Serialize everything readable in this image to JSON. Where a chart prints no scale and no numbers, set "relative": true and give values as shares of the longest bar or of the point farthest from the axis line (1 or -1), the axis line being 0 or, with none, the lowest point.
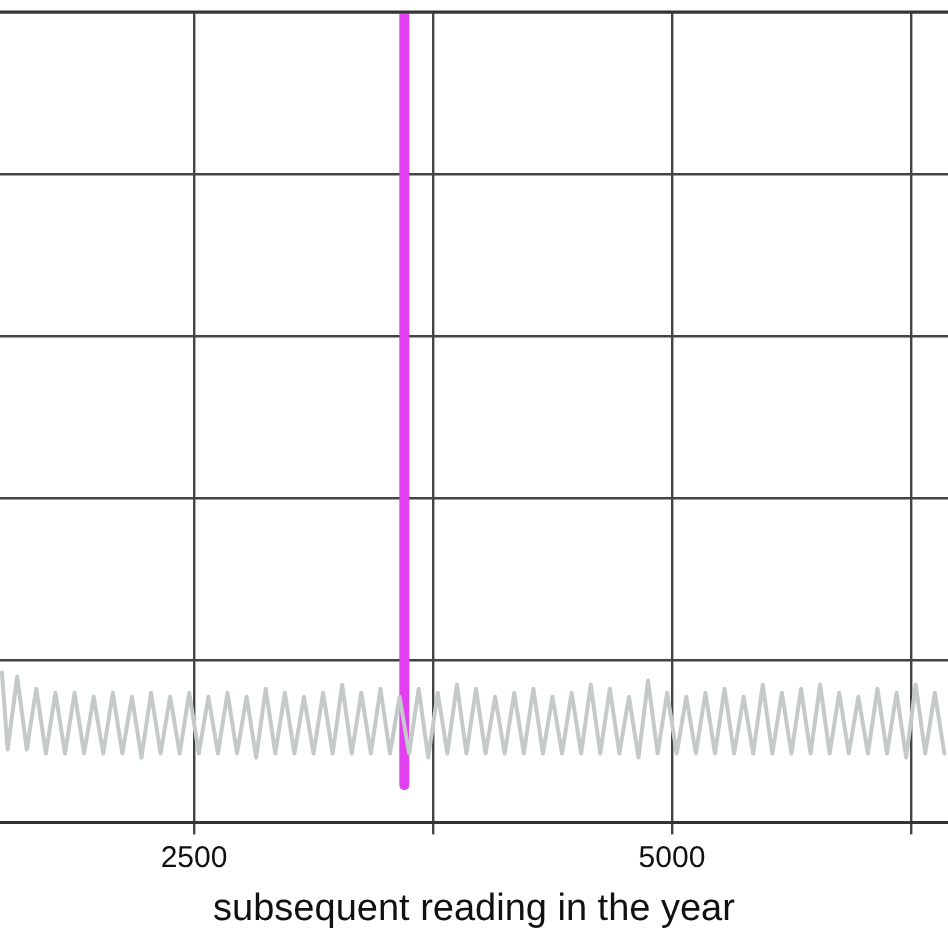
{
  "chart_data": {
    "type": "line",
    "xlabel": "subsequent reading in the year",
    "relative": true,
    "grid": true,
    "marker": "none",
    "line_style": "solid",
    "xlim": [
      1485,
      6444
    ],
    "xticks": [
      2500,
      {
        "value": 3750,
        "label": null
      },
      5000,
      {
        "value": 6250,
        "label": null
      }
    ],
    "series": [
      {
        "color": "#c4cac8",
        "x": [
          1495,
          1525,
          1575,
          1625,
          1675,
          1725,
          1775,
          1825,
          1875,
          1925,
          1975,
          2025,
          2075,
          2125,
          2175,
          2225,
          2275,
          2325,
          2375,
          2425,
          2475,
          2525,
          2575,
          2625,
          2675,
          2725,
          2775,
          2825,
          2875,
          2925,
          2975,
          3025,
          3075,
          3125,
          3175,
          3225,
          3275,
          3325,
          3375,
          3425,
          3475,
          3525,
          3575,
          3625,
          3675,
          3725,
          3775,
          3825,
          3875,
          3925,
          3975,
          4025,
          4075,
          4125,
          4175,
          4225,
          4275,
          4325,
          4375,
          4425,
          4475,
          4525,
          4575,
          4625,
          4675,
          4725,
          4775,
          4825,
          4875,
          4925,
          4975,
          5025,
          5075,
          5125,
          5175,
          5225,
          5275,
          5325,
          5375,
          5425,
          5475,
          5525,
          5575,
          5625,
          5675,
          5725,
          5775,
          5825,
          5875,
          5925,
          5975,
          6025,
          6075,
          6125,
          6175,
          6225,
          6275,
          6325,
          6375,
          6425
        ],
        "values": [
          0.185,
          0.09,
          0.18,
          0.09,
          0.165,
          0.085,
          0.16,
          0.085,
          0.16,
          0.085,
          0.155,
          0.085,
          0.16,
          0.085,
          0.155,
          0.08,
          0.16,
          0.085,
          0.155,
          0.085,
          0.16,
          0.085,
          0.155,
          0.085,
          0.16,
          0.085,
          0.155,
          0.08,
          0.165,
          0.085,
          0.16,
          0.085,
          0.155,
          0.085,
          0.16,
          0.085,
          0.17,
          0.085,
          0.16,
          0.085,
          0.165,
          0.085,
          0.155,
          0.085,
          0.165,
          0.08,
          0.16,
          0.085,
          0.17,
          0.085,
          0.165,
          0.085,
          0.155,
          0.085,
          0.16,
          0.085,
          0.165,
          0.085,
          0.155,
          0.085,
          0.16,
          0.085,
          0.17,
          0.085,
          0.165,
          0.085,
          0.155,
          0.08,
          0.175,
          0.085,
          0.16,
          0.085,
          0.155,
          0.085,
          0.16,
          0.085,
          0.165,
          0.085,
          0.155,
          0.085,
          0.17,
          0.085,
          0.16,
          0.085,
          0.165,
          0.085,
          0.17,
          0.085,
          0.16,
          0.085,
          0.155,
          0.085,
          0.165,
          0.085,
          0.16,
          0.08,
          0.17,
          0.085,
          0.16,
          0.085
        ]
      },
      {
        "color": "#e040f0",
        "x": [
          3600,
          3600
        ],
        "values": [
          0.046,
          1
        ]
      }
    ]
  }
}
